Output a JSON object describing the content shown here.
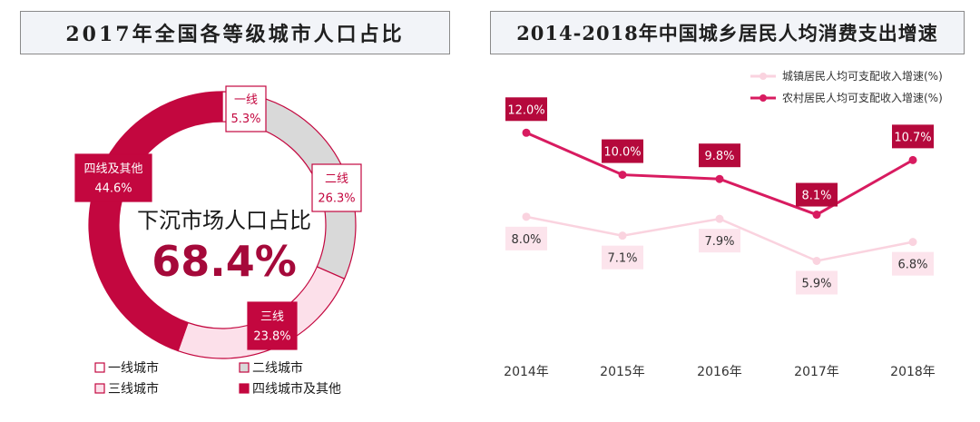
{
  "left_title": "2017年全国各等级城市人口占比",
  "right_title": "2014-2018年中国城乡居民人均消费支出增速",
  "colors": {
    "tier1": "#ffffff",
    "tier2": "#d9d9d9",
    "tier3": "#fce0ea",
    "tier4": "#c3073f",
    "border": "#c3073f",
    "rural": "#d81b60",
    "rural_label_bg": "#b5093c",
    "urban": "#fad3df",
    "urban_label_bg": "#fce4ec"
  },
  "center_text": {
    "line1": "下沉市场人口占比",
    "line2": "68.4%"
  },
  "chart_data": [
    {
      "type": "pie",
      "title": "2017年全国各等级城市人口占比",
      "slices": [
        {
          "name": "一线",
          "legend": "一线城市",
          "value": 5.3,
          "label": "5.3%"
        },
        {
          "name": "二线",
          "legend": "二线城市",
          "value": 26.3,
          "label": "26.3%"
        },
        {
          "name": "三线",
          "legend": "三线城市",
          "value": 23.8,
          "label": "23.8%"
        },
        {
          "name": "四线及其他",
          "legend": "四线城市及其他",
          "value": 44.6,
          "label": "44.6%"
        }
      ]
    },
    {
      "type": "line",
      "title": "2014-2018年中国城乡居民人均消费支出增速",
      "categories": [
        "2014年",
        "2015年",
        "2016年",
        "2017年",
        "2018年"
      ],
      "ylim": [
        0,
        14
      ],
      "legend_position": "top-right",
      "grid": false,
      "series": [
        {
          "name": "城镇居民人均可支配收入增速(%)",
          "values": [
            8.0,
            7.1,
            7.9,
            5.9,
            6.8
          ],
          "labels": [
            "8.0%",
            "7.1%",
            "7.9%",
            "5.9%",
            "6.8%"
          ]
        },
        {
          "name": "农村居民人均可支配收入增速(%)",
          "values": [
            12.0,
            10.0,
            9.8,
            8.1,
            10.7
          ],
          "labels": [
            "12.0%",
            "10.0%",
            "9.8%",
            "8.1%",
            "10.7%"
          ]
        }
      ]
    }
  ]
}
